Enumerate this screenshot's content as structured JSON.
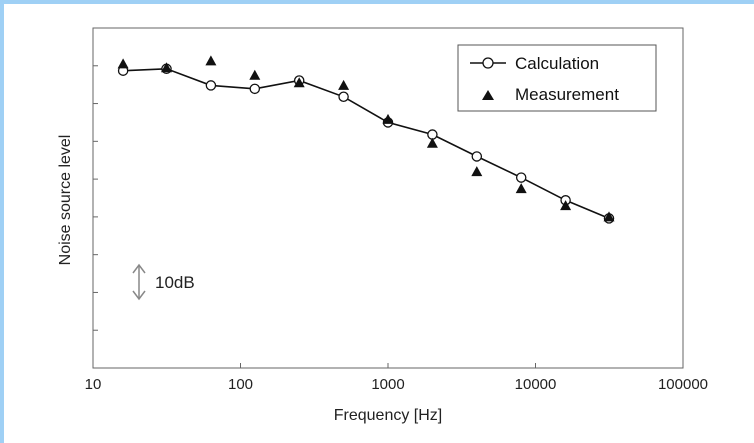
{
  "chart_data": {
    "type": "scatter",
    "xlabel": "Frequency [Hz]",
    "ylabel": "Noise source level",
    "xscale": "log",
    "xlim": [
      10,
      100000
    ],
    "x_ticks": [
      "10",
      "100",
      "1000",
      "10000",
      "100000"
    ],
    "ylim_db": [
      0,
      90
    ],
    "grid": false,
    "legend_position": "top-right",
    "scale_marker_label": "10dB",
    "series": [
      {
        "name": "Calculation",
        "style": "line-open-circle",
        "x": [
          16,
          31.5,
          63,
          125,
          250,
          500,
          1000,
          2000,
          4000,
          8000,
          16000,
          31500
        ],
        "y": [
          78.7,
          79.2,
          74.8,
          73.9,
          76.1,
          71.8,
          65.0,
          61.8,
          56.0,
          50.4,
          44.4,
          39.6
        ]
      },
      {
        "name": "Measurement",
        "style": "filled-triangle",
        "x": [
          16,
          31.5,
          63,
          125,
          250,
          500,
          1000,
          2000,
          4000,
          8000,
          16000,
          31500
        ],
        "y": [
          80.5,
          79.5,
          81.3,
          77.5,
          75.5,
          74.8,
          65.8,
          59.5,
          52.0,
          47.5,
          43.0,
          40.0
        ]
      }
    ]
  }
}
